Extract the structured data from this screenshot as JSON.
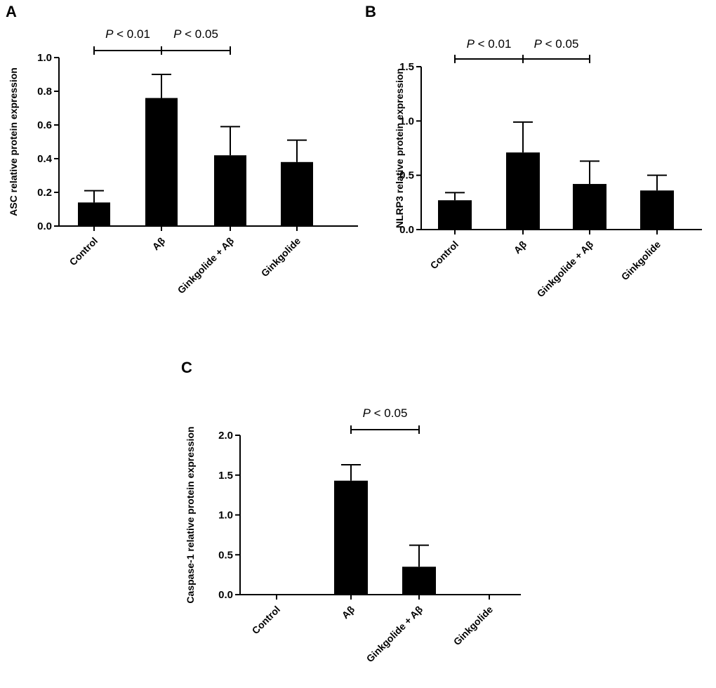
{
  "chart_data": [
    {
      "type": "bar",
      "panel": "A",
      "ylabel": "ASC relative protein expression",
      "categories": [
        "Control",
        "Aβ",
        "Ginkgolide + Aβ",
        "Ginkgolide"
      ],
      "values": [
        0.14,
        0.76,
        0.42,
        0.38
      ],
      "errors": [
        0.07,
        0.14,
        0.17,
        0.13
      ],
      "ylim": [
        0,
        1.0
      ],
      "yticks": [
        "0.0",
        "0.2",
        "0.4",
        "0.6",
        "0.8",
        "1.0"
      ],
      "significance": [
        {
          "from": 0,
          "to": 1,
          "p": "P",
          "rest": " < 0.01"
        },
        {
          "from": 1,
          "to": 2,
          "p": "P",
          "rest": " < 0.05"
        }
      ]
    },
    {
      "type": "bar",
      "panel": "B",
      "ylabel": "NLRP3 relative protein expression",
      "categories": [
        "Control",
        "Aβ",
        "Ginkgolide + Aβ",
        "Ginkgolide"
      ],
      "values": [
        0.27,
        0.71,
        0.42,
        0.36
      ],
      "errors": [
        0.07,
        0.28,
        0.21,
        0.14
      ],
      "ylim": [
        0,
        1.5
      ],
      "yticks": [
        "0.0",
        "0.5",
        "1.0",
        "1.5"
      ],
      "significance": [
        {
          "from": 0,
          "to": 1,
          "p": "P",
          "rest": " < 0.01"
        },
        {
          "from": 1,
          "to": 2,
          "p": "P",
          "rest": " < 0.05"
        }
      ]
    },
    {
      "type": "bar",
      "panel": "C",
      "ylabel": "Caspase-1 relative protein expression",
      "categories": [
        "Control",
        "Aβ",
        "Ginkgolide + Aβ",
        "Ginkgolide"
      ],
      "values": [
        0,
        1.43,
        0.35,
        0
      ],
      "errors": [
        0,
        0.2,
        0.27,
        0
      ],
      "ylim": [
        0,
        2.0
      ],
      "yticks": [
        "0.0",
        "0.5",
        "1.0",
        "1.5",
        "2.0"
      ],
      "significance": [
        {
          "from": 1,
          "to": 2,
          "p": "P",
          "rest": " < 0.05"
        }
      ]
    }
  ]
}
